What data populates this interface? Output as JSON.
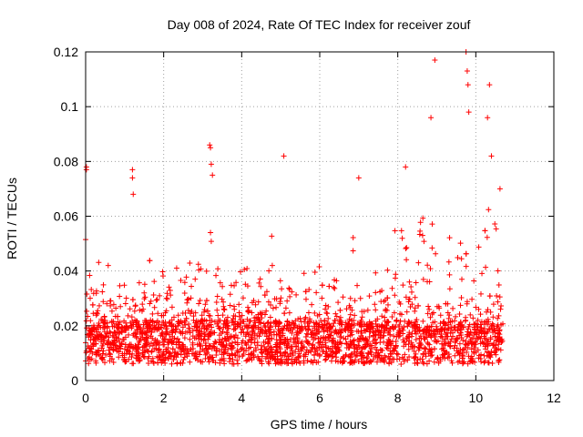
{
  "chart_data": {
    "type": "scatter",
    "title": "Day 008 of 2024, Rate Of TEC Index for receiver zouf",
    "xlabel": "GPS time / hours",
    "ylabel": "ROTI / TECUs",
    "xlim": [
      0,
      12
    ],
    "ylim": [
      0,
      0.12
    ],
    "xticks": [
      0,
      2,
      4,
      6,
      8,
      10,
      12
    ],
    "xtick_labels": [
      "0",
      "2",
      "4",
      "6",
      "8",
      "10",
      "12"
    ],
    "yticks": [
      0,
      0.02,
      0.04,
      0.06,
      0.08,
      0.1,
      0.12
    ],
    "ytick_labels": [
      "0",
      "0.02",
      "0.04",
      "0.06",
      "0.08",
      "0.1",
      "0.12"
    ],
    "grid": true,
    "marker": "+",
    "series_color": "#ff0000",
    "data_extent_x": [
      0,
      10.7
    ],
    "highlights": [
      {
        "x": 0.02,
        "y": 0.078
      },
      {
        "x": 0.02,
        "y": 0.077
      },
      {
        "x": 1.2,
        "y": 0.077
      },
      {
        "x": 1.2,
        "y": 0.074
      },
      {
        "x": 1.22,
        "y": 0.068
      },
      {
        "x": 3.18,
        "y": 0.086
      },
      {
        "x": 3.2,
        "y": 0.085
      },
      {
        "x": 3.22,
        "y": 0.079
      },
      {
        "x": 3.25,
        "y": 0.075
      },
      {
        "x": 3.2,
        "y": 0.054
      },
      {
        "x": 5.08,
        "y": 0.082
      },
      {
        "x": 7.0,
        "y": 0.074
      },
      {
        "x": 8.2,
        "y": 0.078
      },
      {
        "x": 8.85,
        "y": 0.096
      },
      {
        "x": 8.95,
        "y": 0.117
      },
      {
        "x": 9.75,
        "y": 0.12
      },
      {
        "x": 9.78,
        "y": 0.113
      },
      {
        "x": 9.8,
        "y": 0.108
      },
      {
        "x": 9.82,
        "y": 0.098
      },
      {
        "x": 10.35,
        "y": 0.108
      },
      {
        "x": 10.3,
        "y": 0.096
      },
      {
        "x": 10.4,
        "y": 0.082
      },
      {
        "x": 10.62,
        "y": 0.07
      }
    ]
  }
}
